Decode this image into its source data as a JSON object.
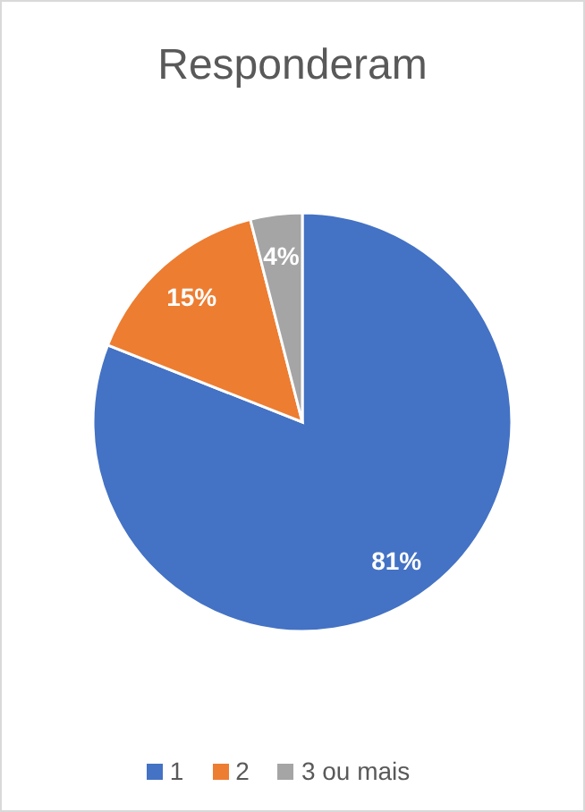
{
  "chart_data": {
    "type": "pie",
    "title": "Responderam",
    "categories": [
      "1",
      "2",
      "3 ou mais"
    ],
    "values": [
      81,
      15,
      4
    ],
    "colors": [
      "#4472c4",
      "#ed7d31",
      "#a5a5a5"
    ],
    "value_labels": [
      "81%",
      "15%",
      "4%"
    ],
    "legend": "bottom"
  }
}
